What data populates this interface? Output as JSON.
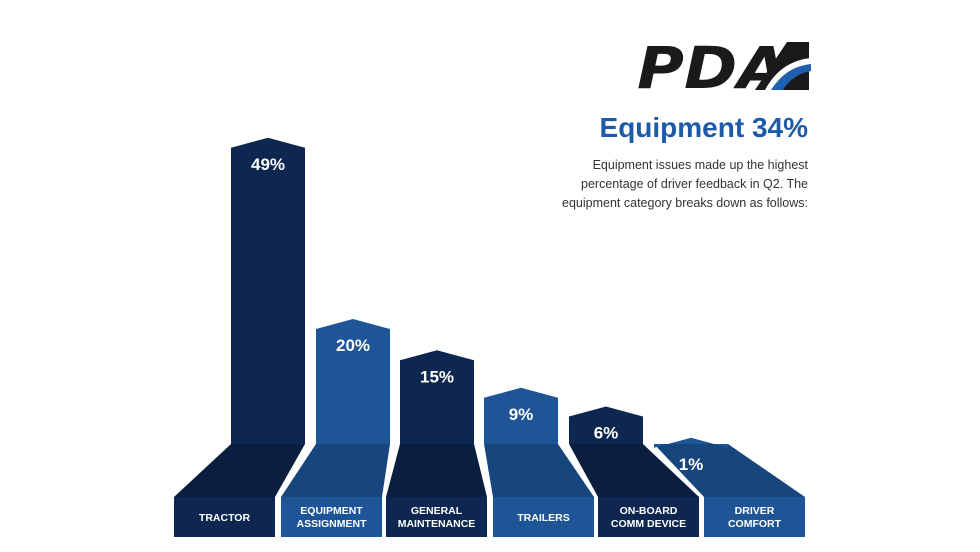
{
  "brand": {
    "logo_text": "PDA",
    "logo_color": "#1a1a1a",
    "accent": "#1e5fae"
  },
  "header": {
    "title": "Equipment 34%",
    "description": "Equipment issues made up the highest percentage of driver feedback in Q2. The equipment category breaks down as follows:"
  },
  "colors": {
    "dark": "#0d2750",
    "mid": "#1d5596",
    "dark_side": "#0a1f40",
    "mid_side": "#17467d"
  },
  "chart_data": {
    "type": "bar",
    "title": "Equipment 34%",
    "categories": [
      [
        "TRACTOR"
      ],
      [
        "EQUIPMENT",
        "ASSIGNMENT"
      ],
      [
        "GENERAL",
        "MAINTENANCE"
      ],
      [
        "TRAILERS"
      ],
      [
        "ON-BOARD",
        "COMM DEVICE"
      ],
      [
        "DRIVER",
        "COMFORT"
      ]
    ],
    "values": [
      49,
      20,
      15,
      9,
      6,
      1
    ],
    "value_labels": [
      "49%",
      "20%",
      "15%",
      "9%",
      "6%",
      "1%"
    ],
    "bar_colors": [
      "dark",
      "mid",
      "dark",
      "mid",
      "dark",
      "mid"
    ],
    "unit": "%"
  }
}
